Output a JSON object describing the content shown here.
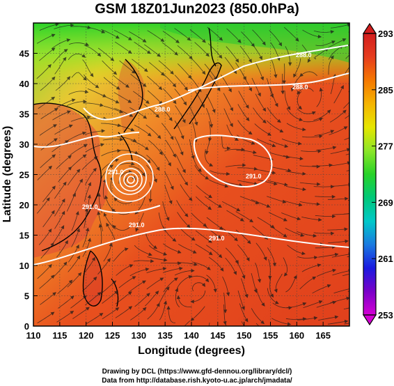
{
  "title": "GSM 18Z01Jun2023 (850.0hPa)",
  "x_axis": {
    "label": "Longitude (degrees)",
    "ticks": [
      "110",
      "115",
      "120",
      "125",
      "130",
      "135",
      "140",
      "145",
      "150",
      "155",
      "160",
      "165"
    ],
    "range": [
      110,
      170
    ]
  },
  "y_axis": {
    "label": "Latitude (degrees)",
    "ticks": [
      "0",
      "5",
      "10",
      "15",
      "20",
      "25",
      "30",
      "35",
      "40",
      "45"
    ],
    "range": [
      0,
      50
    ]
  },
  "colorbar": {
    "labels": [
      "293",
      "285",
      "277",
      "269",
      "261",
      "253"
    ],
    "min": 253,
    "max": 293,
    "colors": [
      "#d400d4",
      "#7a00c8",
      "#1a1ae0",
      "#1a7ae0",
      "#00c8c8",
      "#00c878",
      "#28d228",
      "#8ce628",
      "#e6e600",
      "#f5b400",
      "#f57800",
      "#e63c1e",
      "#d21e1e"
    ]
  },
  "contour_labels": [
    "288.0",
    "288.0",
    "288.0",
    "291.0",
    "291.0",
    "291.0",
    "291.0",
    "291.0"
  ],
  "credits": {
    "line1": "Drawing by DCL (https://www.gfd-dennou.org/library/dcl/)",
    "line2": "Data from http://database.rish.kyoto-u.ac.jp/arch/jmadata/"
  }
}
